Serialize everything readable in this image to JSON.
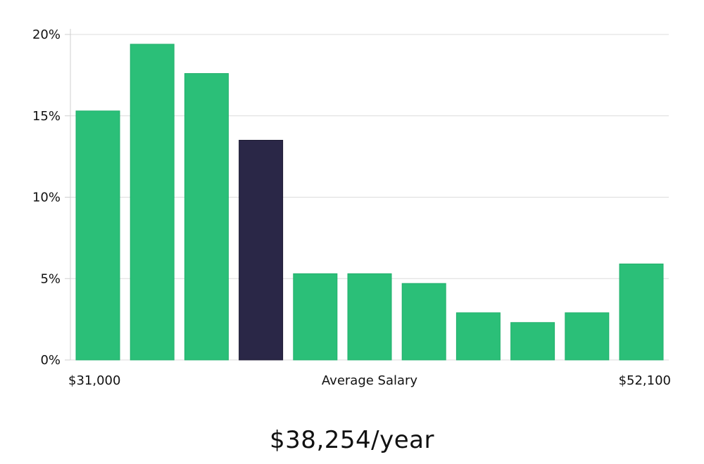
{
  "chart_data": {
    "type": "bar",
    "xlabel": "Average Salary",
    "x_start_label": "$31,000",
    "x_end_label": "$52,100",
    "ylim": [
      0,
      20
    ],
    "y_ticks": [
      0,
      5,
      10,
      15,
      20
    ],
    "y_tick_labels": [
      "0%",
      "5%",
      "10%",
      "15%",
      "20%"
    ],
    "values": [
      15.3,
      19.4,
      17.6,
      13.5,
      5.3,
      5.3,
      4.7,
      2.9,
      2.3,
      2.9,
      5.9
    ],
    "highlight_index": 3,
    "colors": {
      "bar": "#2bbf78",
      "highlight": "#2a2747",
      "grid": "#dcdcdc"
    }
  },
  "salary": {
    "value": "$38,254/year"
  }
}
